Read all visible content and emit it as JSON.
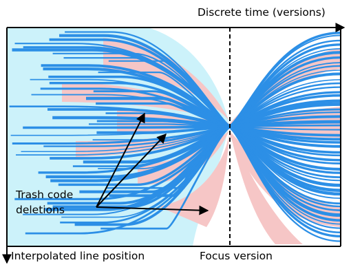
{
  "axes": {
    "x_label": "Discrete time (versions)",
    "y_label": "Interpolated line position"
  },
  "focus": {
    "label": "Focus version"
  },
  "annotation": {
    "label": "Trash code deletions"
  },
  "colors": {
    "code_lines": "#2c8fe6",
    "deletion": "#f6c3c3",
    "background": "#c9f0f8",
    "frame": "#000000"
  }
}
